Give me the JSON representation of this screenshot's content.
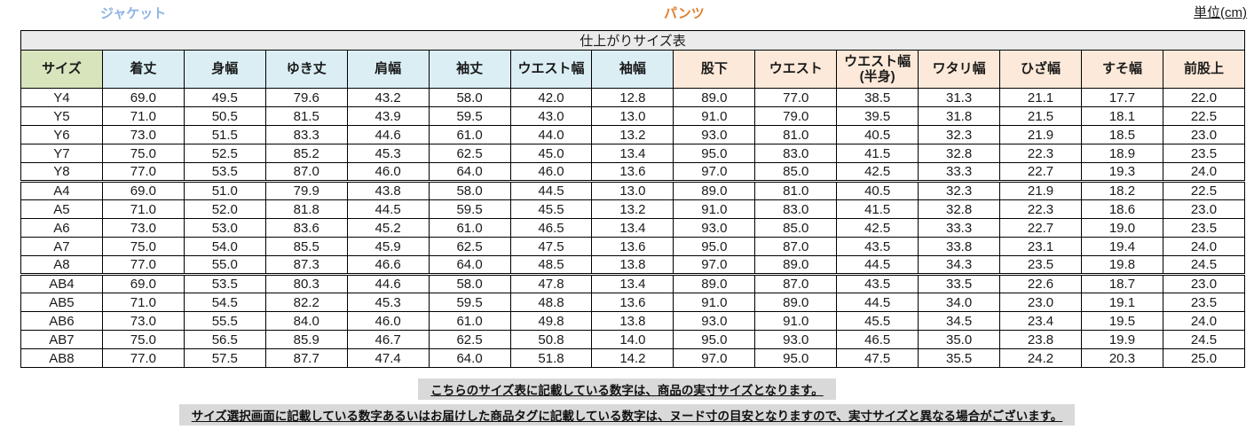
{
  "page": {
    "jacket_label": "ジャケット",
    "pants_label": "パンツ",
    "unit_label": "単位(cm)"
  },
  "colors": {
    "jacket_accent": "#8db4e2",
    "pants_accent": "#e07f2f",
    "size_header_bg": "#d8e4bc",
    "jacket_header_bg": "#daeef3",
    "pants_header_bg": "#fde9d9",
    "title_bg": "#ebebeb",
    "note_bg": "#d9d9d9"
  },
  "table": {
    "title": "仕上がりサイズ表",
    "size_header": "サイズ",
    "jacket_columns": [
      "着丈",
      "身幅",
      "ゆき丈",
      "肩幅",
      "袖丈",
      "ウエスト幅",
      "袖幅"
    ],
    "pants_columns": [
      "股下",
      "ウエスト",
      "ウエスト幅\n(半身)",
      "ワタリ幅",
      "ひざ幅",
      "すそ幅",
      "前股上"
    ],
    "groups": [
      {
        "name": "Y",
        "rows": [
          {
            "size": "Y4",
            "values": [
              "69.0",
              "49.5",
              "79.6",
              "43.2",
              "58.0",
              "42.0",
              "12.8",
              "89.0",
              "77.0",
              "38.5",
              "31.3",
              "21.1",
              "17.7",
              "22.0"
            ]
          },
          {
            "size": "Y5",
            "values": [
              "71.0",
              "50.5",
              "81.5",
              "43.9",
              "59.5",
              "43.0",
              "13.0",
              "91.0",
              "79.0",
              "39.5",
              "31.8",
              "21.5",
              "18.1",
              "22.5"
            ]
          },
          {
            "size": "Y6",
            "values": [
              "73.0",
              "51.5",
              "83.3",
              "44.6",
              "61.0",
              "44.0",
              "13.2",
              "93.0",
              "81.0",
              "40.5",
              "32.3",
              "21.9",
              "18.5",
              "23.0"
            ]
          },
          {
            "size": "Y7",
            "values": [
              "75.0",
              "52.5",
              "85.2",
              "45.3",
              "62.5",
              "45.0",
              "13.4",
              "95.0",
              "83.0",
              "41.5",
              "32.8",
              "22.3",
              "18.9",
              "23.5"
            ]
          },
          {
            "size": "Y8",
            "values": [
              "77.0",
              "53.5",
              "87.0",
              "46.0",
              "64.0",
              "46.0",
              "13.6",
              "97.0",
              "85.0",
              "42.5",
              "33.3",
              "22.7",
              "19.3",
              "24.0"
            ]
          }
        ]
      },
      {
        "name": "A",
        "rows": [
          {
            "size": "A4",
            "values": [
              "69.0",
              "51.0",
              "79.9",
              "43.8",
              "58.0",
              "44.5",
              "13.0",
              "89.0",
              "81.0",
              "40.5",
              "32.3",
              "21.9",
              "18.2",
              "22.5"
            ]
          },
          {
            "size": "A5",
            "values": [
              "71.0",
              "52.0",
              "81.8",
              "44.5",
              "59.5",
              "45.5",
              "13.2",
              "91.0",
              "83.0",
              "41.5",
              "32.8",
              "22.3",
              "18.6",
              "23.0"
            ]
          },
          {
            "size": "A6",
            "values": [
              "73.0",
              "53.0",
              "83.6",
              "45.2",
              "61.0",
              "46.5",
              "13.4",
              "93.0",
              "85.0",
              "42.5",
              "33.3",
              "22.7",
              "19.0",
              "23.5"
            ]
          },
          {
            "size": "A7",
            "values": [
              "75.0",
              "54.0",
              "85.5",
              "45.9",
              "62.5",
              "47.5",
              "13.6",
              "95.0",
              "87.0",
              "43.5",
              "33.8",
              "23.1",
              "19.4",
              "24.0"
            ]
          },
          {
            "size": "A8",
            "values": [
              "77.0",
              "55.0",
              "87.3",
              "46.6",
              "64.0",
              "48.5",
              "13.8",
              "97.0",
              "89.0",
              "44.5",
              "34.3",
              "23.5",
              "19.8",
              "24.5"
            ]
          }
        ]
      },
      {
        "name": "AB",
        "rows": [
          {
            "size": "AB4",
            "values": [
              "69.0",
              "53.5",
              "80.3",
              "44.6",
              "58.0",
              "47.8",
              "13.4",
              "89.0",
              "87.0",
              "43.5",
              "33.5",
              "22.6",
              "18.7",
              "23.0"
            ]
          },
          {
            "size": "AB5",
            "values": [
              "71.0",
              "54.5",
              "82.2",
              "45.3",
              "59.5",
              "48.8",
              "13.6",
              "91.0",
              "89.0",
              "44.5",
              "34.0",
              "23.0",
              "19.1",
              "23.5"
            ]
          },
          {
            "size": "AB6",
            "values": [
              "73.0",
              "55.5",
              "84.0",
              "46.0",
              "61.0",
              "49.8",
              "13.8",
              "93.0",
              "91.0",
              "45.5",
              "34.5",
              "23.4",
              "19.5",
              "24.0"
            ]
          },
          {
            "size": "AB7",
            "values": [
              "75.0",
              "56.5",
              "85.9",
              "46.7",
              "62.5",
              "50.8",
              "14.0",
              "95.0",
              "93.0",
              "46.5",
              "35.0",
              "23.8",
              "19.9",
              "24.5"
            ]
          },
          {
            "size": "AB8",
            "values": [
              "77.0",
              "57.5",
              "87.7",
              "47.4",
              "64.0",
              "51.8",
              "14.2",
              "97.0",
              "95.0",
              "47.5",
              "35.5",
              "24.2",
              "20.3",
              "25.0"
            ]
          }
        ]
      }
    ]
  },
  "notes": [
    "こちらのサイズ表に記載している数字は、商品の実寸サイズとなります。",
    "サイズ選択画面に記載している数字あるいはお届けした商品タグに記載している数字は、ヌード寸の目安となりますので、実寸サイズと異なる場合がございます。"
  ]
}
